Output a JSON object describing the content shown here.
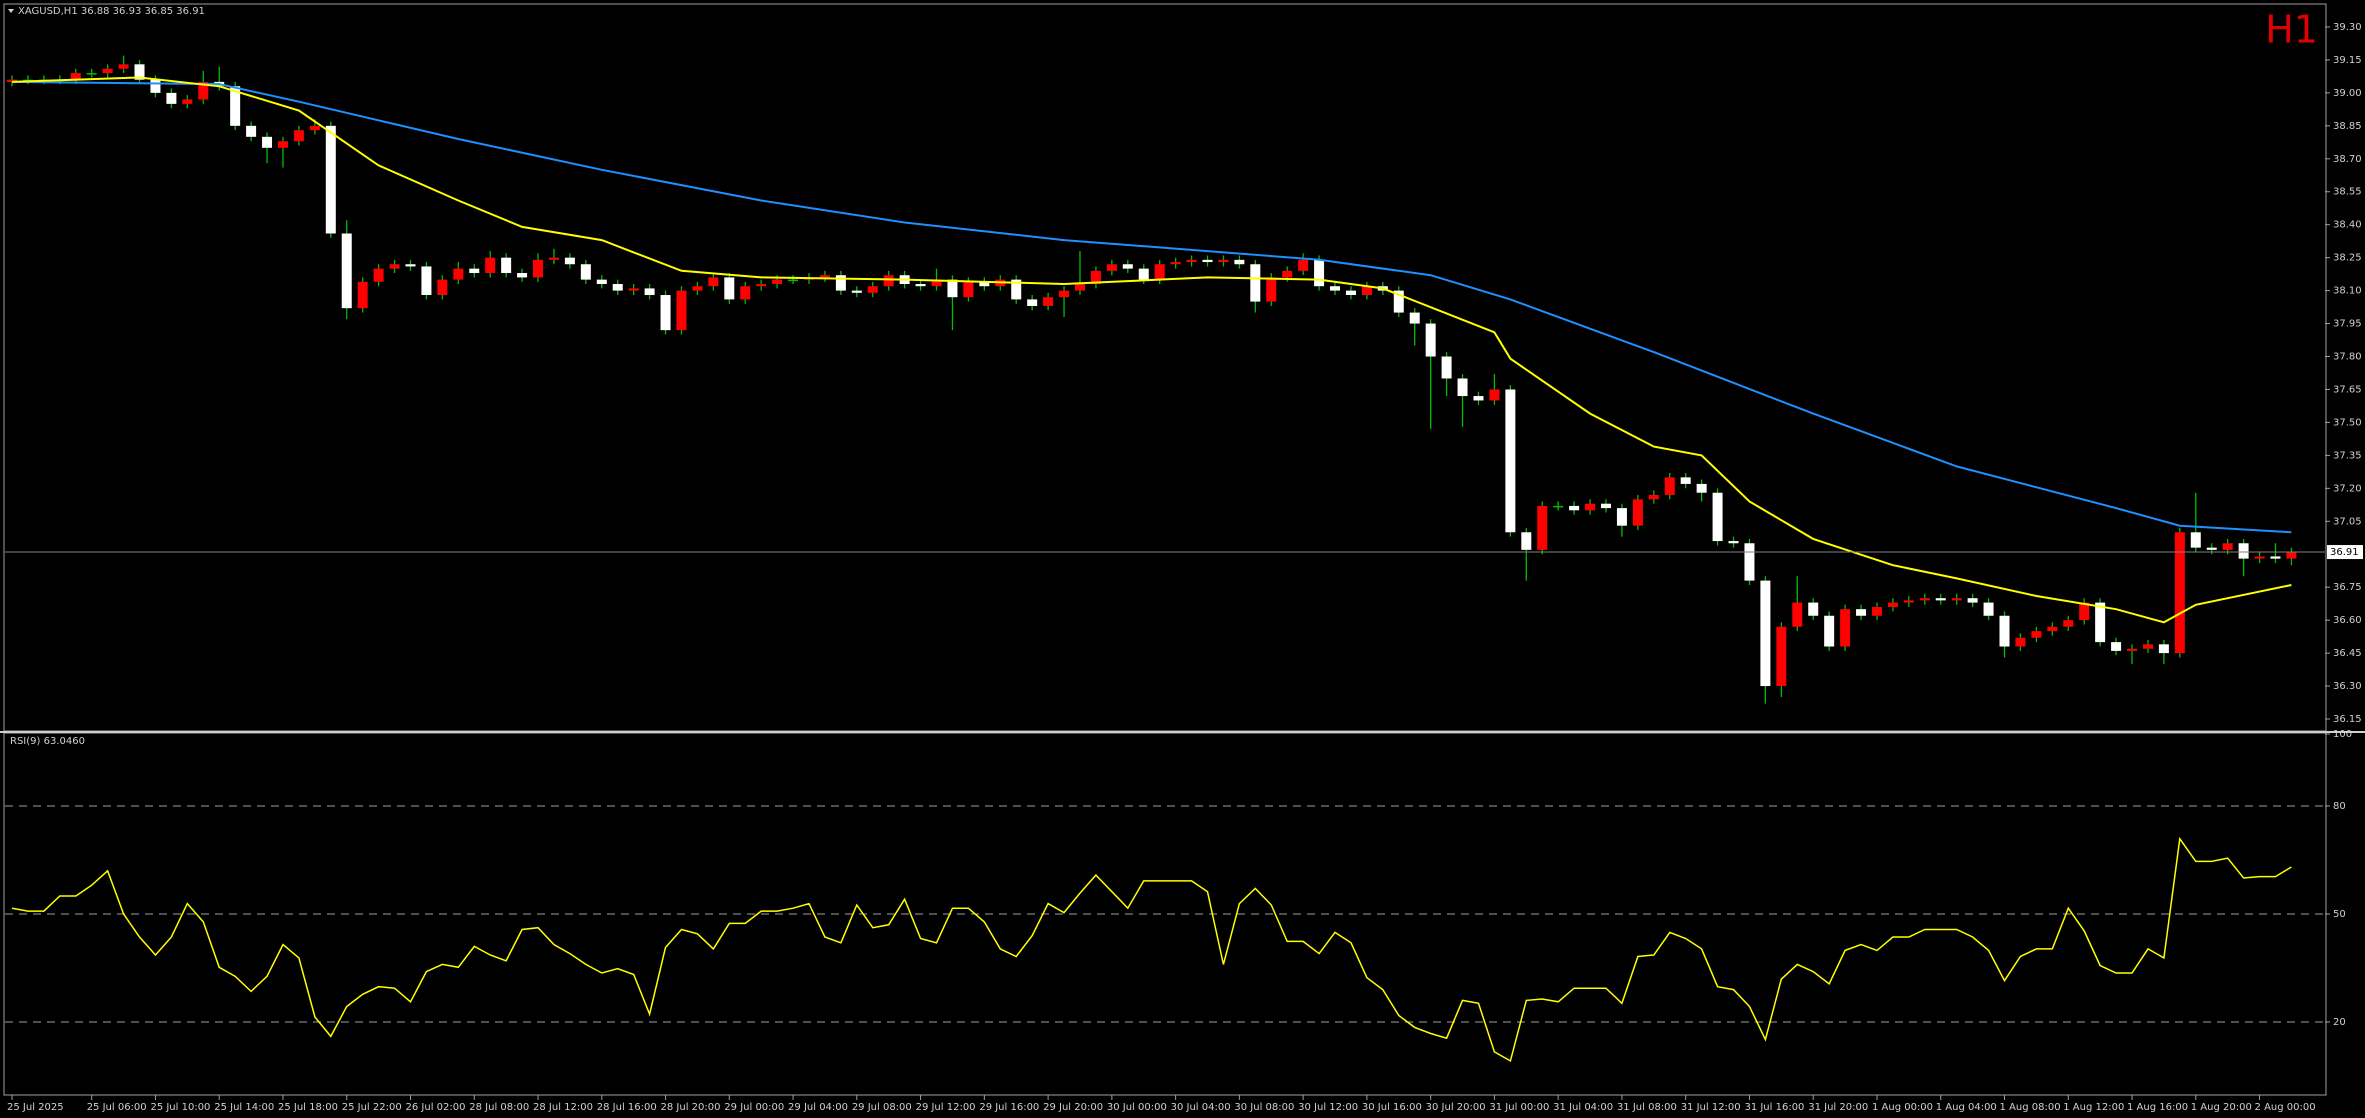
{
  "chart_data": [
    {
      "type": "candlestick",
      "title": "XAGUSD,H1  36.88 36.93 36.85 36.91",
      "period_label": "H1",
      "categories": [
        "25 Jul 2025",
        null,
        null,
        null,
        null,
        "25 Jul 06:00",
        null,
        null,
        null,
        "25 Jul 10:00",
        null,
        null,
        null,
        "25 Jul 14:00",
        null,
        null,
        null,
        "25 Jul 18:00",
        null,
        null,
        null,
        "25 Jul 22:00",
        null,
        null,
        null,
        "26 Jul 02:00",
        null,
        null,
        null,
        "28 Jul 08:00",
        null,
        null,
        null,
        "28 Jul 12:00",
        null,
        null,
        null,
        "28 Jul 16:00",
        null,
        null,
        null,
        "28 Jul 20:00",
        null,
        null,
        null,
        "29 Jul 00:00",
        null,
        null,
        null,
        "29 Jul 04:00",
        null,
        null,
        null,
        "29 Jul 08:00",
        null,
        null,
        null,
        "29 Jul 12:00",
        null,
        null,
        null,
        "29 Jul 16:00",
        null,
        null,
        null,
        "29 Jul 20:00",
        null,
        null,
        null,
        "30 Jul 00:00",
        null,
        null,
        null,
        "30 Jul 04:00",
        null,
        null,
        null,
        "30 Jul 08:00",
        null,
        null,
        null,
        "30 Jul 12:00",
        null,
        null,
        null,
        "30 Jul 16:00",
        null,
        null,
        null,
        "30 Jul 20:00",
        null,
        null,
        null,
        "31 Jul 00:00",
        null,
        null,
        null,
        "31 Jul 04:00",
        null,
        null,
        null,
        "31 Jul 08:00",
        null,
        null,
        null,
        "31 Jul 12:00",
        null,
        null,
        null,
        "31 Jul 16:00",
        null,
        null,
        null,
        "31 Jul 20:00",
        null,
        null,
        null,
        "1 Aug 00:00",
        null,
        null,
        null,
        "1 Aug 04:00",
        null,
        null,
        null,
        "1 Aug 08:00",
        null,
        null,
        null,
        "1 Aug 12:00",
        null,
        null,
        null,
        "1 Aug 16:00",
        null,
        null,
        null,
        "1 Aug 20:00",
        null,
        null,
        null,
        "2 Aug 00:00",
        null,
        null
      ],
      "open": [
        39.05,
        39.06,
        39.06,
        39.06,
        39.06,
        39.09,
        39.09,
        39.11,
        39.13,
        39.06,
        39.0,
        38.95,
        38.97,
        39.05,
        39.03,
        38.85,
        38.8,
        38.75,
        38.78,
        38.83,
        38.85,
        38.36,
        38.02,
        38.14,
        38.2,
        38.22,
        38.21,
        38.08,
        38.15,
        38.2,
        38.18,
        38.25,
        38.18,
        38.16,
        38.24,
        38.25,
        38.22,
        38.15,
        38.13,
        38.1,
        38.11,
        38.08,
        37.92,
        38.1,
        38.12,
        38.16,
        38.06,
        38.12,
        38.13,
        38.15,
        38.15,
        38.16,
        38.17,
        38.1,
        38.09,
        38.12,
        38.17,
        38.13,
        38.12,
        38.15,
        38.07,
        38.14,
        38.12,
        38.15,
        38.06,
        38.03,
        38.07,
        38.1,
        38.13,
        38.19,
        38.22,
        38.2,
        38.15,
        38.22,
        38.23,
        38.24,
        38.23,
        38.24,
        38.22,
        38.05,
        38.16,
        38.19,
        38.24,
        38.12,
        38.1,
        38.08,
        38.12,
        38.1,
        38.0,
        37.95,
        37.8,
        37.7,
        37.62,
        37.6,
        37.65,
        37.0,
        36.92,
        37.12,
        37.12,
        37.1,
        37.13,
        37.11,
        37.03,
        37.15,
        37.17,
        37.25,
        37.22,
        37.18,
        36.96,
        36.95,
        36.78,
        36.3,
        36.57,
        36.68,
        36.62,
        36.48,
        36.65,
        36.62,
        36.66,
        36.68,
        36.69,
        36.7,
        36.69,
        36.7,
        36.68,
        36.62,
        36.48,
        36.52,
        36.55,
        36.57,
        36.6,
        36.68,
        36.5,
        36.46,
        36.47,
        36.49,
        36.45,
        37.0,
        36.93,
        36.92,
        36.95,
        36.88,
        36.89,
        36.88
      ],
      "high": [
        39.08,
        39.08,
        39.08,
        39.08,
        39.11,
        39.11,
        39.13,
        39.17,
        39.15,
        39.08,
        39.02,
        38.99,
        39.1,
        39.12,
        39.05,
        38.87,
        38.82,
        38.8,
        38.85,
        38.88,
        38.87,
        38.42,
        38.16,
        38.22,
        38.24,
        38.24,
        38.23,
        38.17,
        38.23,
        38.22,
        38.28,
        38.27,
        38.2,
        38.27,
        38.29,
        38.27,
        38.24,
        38.17,
        38.15,
        38.13,
        38.13,
        38.1,
        38.12,
        38.14,
        38.18,
        38.18,
        38.14,
        38.15,
        38.17,
        38.17,
        38.18,
        38.19,
        38.19,
        38.12,
        38.14,
        38.19,
        38.19,
        38.15,
        38.2,
        38.17,
        38.16,
        38.16,
        38.17,
        38.17,
        38.08,
        38.09,
        38.12,
        38.28,
        38.21,
        38.24,
        38.24,
        38.22,
        38.24,
        38.25,
        38.26,
        38.26,
        38.26,
        38.26,
        38.24,
        38.18,
        38.21,
        38.27,
        38.26,
        38.14,
        38.12,
        38.14,
        38.14,
        38.12,
        38.02,
        37.97,
        37.82,
        37.72,
        37.64,
        37.72,
        37.67,
        37.02,
        37.14,
        37.14,
        37.14,
        37.15,
        37.15,
        37.13,
        37.17,
        37.19,
        37.27,
        37.27,
        37.24,
        37.2,
        36.98,
        36.97,
        36.8,
        36.59,
        36.8,
        36.7,
        36.64,
        36.67,
        36.67,
        36.68,
        36.7,
        36.71,
        36.72,
        36.72,
        36.72,
        36.72,
        36.7,
        36.64,
        36.54,
        36.57,
        36.59,
        36.62,
        36.7,
        36.7,
        36.52,
        36.49,
        36.51,
        36.51,
        37.02,
        37.18,
        36.95,
        36.97,
        36.97,
        36.91,
        36.95,
        36.93
      ],
      "low": [
        39.03,
        39.04,
        39.04,
        39.04,
        39.04,
        39.07,
        39.07,
        39.09,
        39.04,
        38.98,
        38.93,
        38.93,
        38.95,
        39.01,
        38.83,
        38.78,
        38.68,
        38.66,
        38.76,
        38.81,
        38.34,
        37.97,
        38.0,
        38.12,
        38.18,
        38.19,
        38.06,
        38.06,
        38.13,
        38.16,
        38.16,
        38.16,
        38.14,
        38.14,
        38.22,
        38.2,
        38.13,
        38.11,
        38.08,
        38.08,
        38.06,
        37.9,
        37.9,
        38.08,
        38.1,
        38.04,
        38.04,
        38.1,
        38.11,
        38.13,
        38.13,
        38.14,
        38.08,
        38.07,
        38.07,
        38.1,
        38.11,
        38.1,
        38.1,
        37.92,
        38.05,
        38.1,
        38.1,
        38.04,
        38.01,
        38.01,
        37.98,
        38.08,
        38.11,
        38.17,
        38.18,
        38.13,
        38.13,
        38.2,
        38.21,
        38.21,
        38.21,
        38.2,
        38.0,
        38.03,
        38.14,
        38.17,
        38.1,
        38.08,
        38.06,
        38.06,
        38.08,
        37.98,
        37.85,
        37.47,
        37.62,
        37.48,
        37.58,
        37.58,
        36.98,
        36.78,
        36.9,
        37.1,
        37.08,
        37.08,
        37.09,
        36.98,
        37.01,
        37.13,
        37.15,
        37.2,
        37.14,
        36.94,
        36.93,
        36.76,
        36.22,
        36.25,
        36.55,
        36.6,
        36.46,
        36.46,
        36.6,
        36.6,
        36.64,
        36.66,
        36.67,
        36.67,
        36.67,
        36.66,
        36.6,
        36.43,
        36.46,
        36.5,
        36.53,
        36.55,
        36.58,
        36.48,
        36.44,
        36.4,
        36.45,
        36.4,
        36.43,
        36.91,
        36.9,
        36.9,
        36.8,
        36.86,
        36.86,
        36.85
      ],
      "close": [
        39.06,
        39.06,
        39.06,
        39.06,
        39.09,
        39.09,
        39.11,
        39.13,
        39.06,
        39.0,
        38.95,
        38.97,
        39.05,
        39.03,
        38.85,
        38.8,
        38.75,
        38.78,
        38.83,
        38.85,
        38.36,
        38.02,
        38.14,
        38.2,
        38.22,
        38.21,
        38.08,
        38.15,
        38.2,
        38.18,
        38.25,
        38.18,
        38.16,
        38.24,
        38.25,
        38.22,
        38.15,
        38.13,
        38.1,
        38.11,
        38.08,
        37.92,
        38.1,
        38.12,
        38.16,
        38.06,
        38.12,
        38.13,
        38.15,
        38.15,
        38.16,
        38.17,
        38.1,
        38.09,
        38.12,
        38.17,
        38.13,
        38.12,
        38.15,
        38.07,
        38.14,
        38.12,
        38.15,
        38.06,
        38.03,
        38.07,
        38.1,
        38.13,
        38.19,
        38.22,
        38.2,
        38.15,
        38.22,
        38.23,
        38.24,
        38.23,
        38.24,
        38.22,
        38.05,
        38.16,
        38.19,
        38.24,
        38.12,
        38.1,
        38.08,
        38.12,
        38.1,
        38.0,
        37.95,
        37.8,
        37.7,
        37.62,
        37.6,
        37.65,
        37.0,
        36.92,
        37.12,
        37.12,
        37.1,
        37.13,
        37.11,
        37.03,
        37.15,
        37.17,
        37.25,
        37.22,
        37.18,
        36.96,
        36.95,
        36.78,
        36.3,
        36.57,
        36.68,
        36.62,
        36.48,
        36.65,
        36.62,
        36.66,
        36.68,
        36.69,
        36.7,
        36.69,
        36.7,
        36.68,
        36.62,
        36.48,
        36.52,
        36.55,
        36.57,
        36.6,
        36.68,
        36.5,
        36.46,
        36.47,
        36.49,
        36.45,
        37.0,
        36.93,
        36.92,
        36.95,
        36.88,
        36.89,
        36.88,
        36.91
      ],
      "bull_color": "#ff0000",
      "bear_color": "#ffffff",
      "wick_color": "#00c000",
      "overlays": [
        {
          "color": "#1e90ff",
          "x": [
            0,
            13,
            18,
            28,
            37,
            47,
            56,
            66,
            75,
            82,
            89,
            94,
            103,
            113,
            122,
            132,
            136,
            143
          ],
          "values": [
            39.05,
            39.04,
            38.96,
            38.79,
            38.65,
            38.51,
            38.41,
            38.33,
            38.28,
            38.24,
            38.17,
            38.06,
            37.82,
            37.54,
            37.3,
            37.11,
            37.03,
            37.0
          ]
        },
        {
          "color": "#ffff00",
          "x": [
            0,
            8,
            13,
            18,
            23,
            28,
            32,
            37,
            42,
            47,
            56,
            66,
            75,
            82,
            86,
            93,
            94,
            99,
            103,
            106,
            109,
            113,
            118,
            122,
            127,
            132,
            135,
            137,
            143
          ],
          "values": [
            39.05,
            39.07,
            39.03,
            38.92,
            38.67,
            38.51,
            38.39,
            38.33,
            38.19,
            38.16,
            38.15,
            38.13,
            38.16,
            38.15,
            38.11,
            37.91,
            37.79,
            37.54,
            37.39,
            37.35,
            37.14,
            36.97,
            36.85,
            36.79,
            36.71,
            36.65,
            36.59,
            36.67,
            36.76
          ]
        }
      ],
      "last_price": 36.91,
      "last_price_color": "#808080",
      "ylim": [
        36.1,
        39.4
      ],
      "yticks": [
        {
          "value": 39.3,
          "label": "39.30"
        },
        39.15,
        {
          "value": 39.0,
          "label": "39.00"
        },
        38.85,
        {
          "value": 38.7,
          "label": "38.70"
        },
        38.55,
        {
          "value": 38.4,
          "label": "38.40"
        },
        38.25,
        {
          "value": 38.1,
          "label": "38.10"
        },
        37.95,
        {
          "value": 37.8,
          "label": "37.80"
        },
        37.65,
        {
          "value": 37.5,
          "label": "37.50"
        },
        37.35,
        {
          "value": 37.2,
          "label": "37.20"
        },
        37.05,
        36.75,
        {
          "value": 36.6,
          "label": "36.60"
        },
        36.45,
        {
          "value": 36.3,
          "label": "36.30"
        },
        36.15
      ]
    },
    {
      "type": "line",
      "title": "RSI(9) 63.0460",
      "color": "#ffff00",
      "values": [
        51.6,
        50.8,
        50.8,
        55,
        55,
        58,
        62,
        50,
        43.6,
        38.6,
        43.6,
        52.9,
        47.8,
        35.2,
        32.7,
        28.5,
        32.7,
        41.5,
        37.8,
        21.4,
        16,
        24.3,
        27.7,
        29.8,
        29.4,
        25.6,
        34,
        36,
        35.2,
        41,
        38.6,
        37,
        45.7,
        46.2,
        41.5,
        39,
        36,
        33.6,
        34.8,
        33.2,
        22.2,
        40.7,
        45.7,
        44.5,
        40.3,
        47.4,
        47.4,
        50.8,
        50.8,
        51.6,
        52.9,
        43.6,
        42,
        52.5,
        46.2,
        47,
        54.1,
        43.2,
        42,
        51.6,
        51.6,
        47.8,
        40.3,
        38.2,
        44,
        52.9,
        50.4,
        55.8,
        60.8,
        56.2,
        51.6,
        59.2,
        59.2,
        59.2,
        59.2,
        56.2,
        36,
        52.9,
        57.1,
        52.5,
        42.4,
        42.4,
        39,
        44.9,
        42,
        32.3,
        29,
        21.8,
        18.5,
        16.8,
        15.5,
        26,
        25.2,
        11.7,
        9.2,
        26,
        26.4,
        25.6,
        29.4,
        29.4,
        29.4,
        25.2,
        38.2,
        38.6,
        44.9,
        43.2,
        40.3,
        29.8,
        29,
        24.3,
        15.1,
        31.9,
        36,
        34,
        30.6,
        39.9,
        41.5,
        39.9,
        43.6,
        43.6,
        45.7,
        45.7,
        45.7,
        43.6,
        39.9,
        31.5,
        38.2,
        40.3,
        40.3,
        51.6,
        45.3,
        35.7,
        33.6,
        33.6,
        40.3,
        37.8,
        70.9,
        64.6,
        64.6,
        65.5,
        60,
        60.4,
        60.4,
        63.046
      ],
      "ylim": [
        0,
        100
      ],
      "yticks": [
        100,
        80,
        50,
        20
      ]
    }
  ]
}
